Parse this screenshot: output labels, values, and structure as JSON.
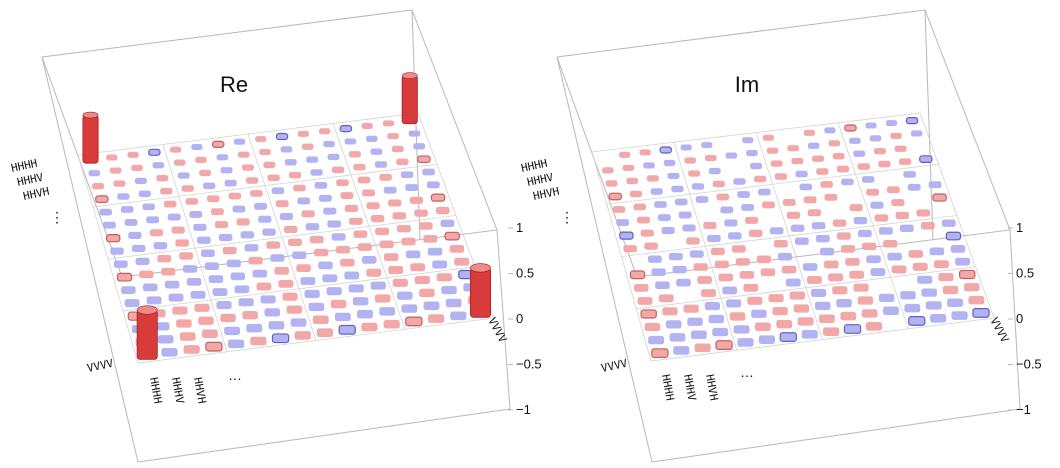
{
  "colors": {
    "positive": "#f2a8a8",
    "negative": "#b3b3f2",
    "tall": "#d93a3a",
    "box": "#b8b8b8"
  },
  "chart_data": [
    {
      "type": "bar3d",
      "title": "Re",
      "zlim": [
        -1,
        1
      ],
      "z_ticks": [
        "1",
        "0.5",
        "0",
        "−0.5",
        "−1"
      ],
      "row_labels": [
        "HHHH",
        "HHHV",
        "HHVH",
        "⋮",
        "VVVV"
      ],
      "col_labels": [
        "HHHH",
        "HHHV",
        "HHVH",
        "…",
        "VVVV"
      ],
      "matrix_size": 16,
      "tall_bars": [
        {
          "row": 0,
          "col": 0,
          "value": 0.5
        },
        {
          "row": 0,
          "col": 15,
          "value": 0.5
        },
        {
          "row": 15,
          "col": 0,
          "value": 0.5
        },
        {
          "row": 15,
          "col": 15,
          "value": 0.5
        }
      ],
      "small_bar_magnitude": 0.03
    },
    {
      "type": "bar3d",
      "title": "Im",
      "zlim": [
        -1,
        1
      ],
      "z_ticks": [
        "1",
        "0.5",
        "0",
        "−0.5",
        "−1"
      ],
      "row_labels": [
        "HHHH",
        "HHHV",
        "HHVH",
        "⋮",
        "VVVV"
      ],
      "col_labels": [
        "HHHH",
        "HHHV",
        "HHVH",
        "…",
        "VVVV"
      ],
      "matrix_size": 16,
      "tall_bars": [],
      "small_bar_magnitude": 0.03
    }
  ]
}
